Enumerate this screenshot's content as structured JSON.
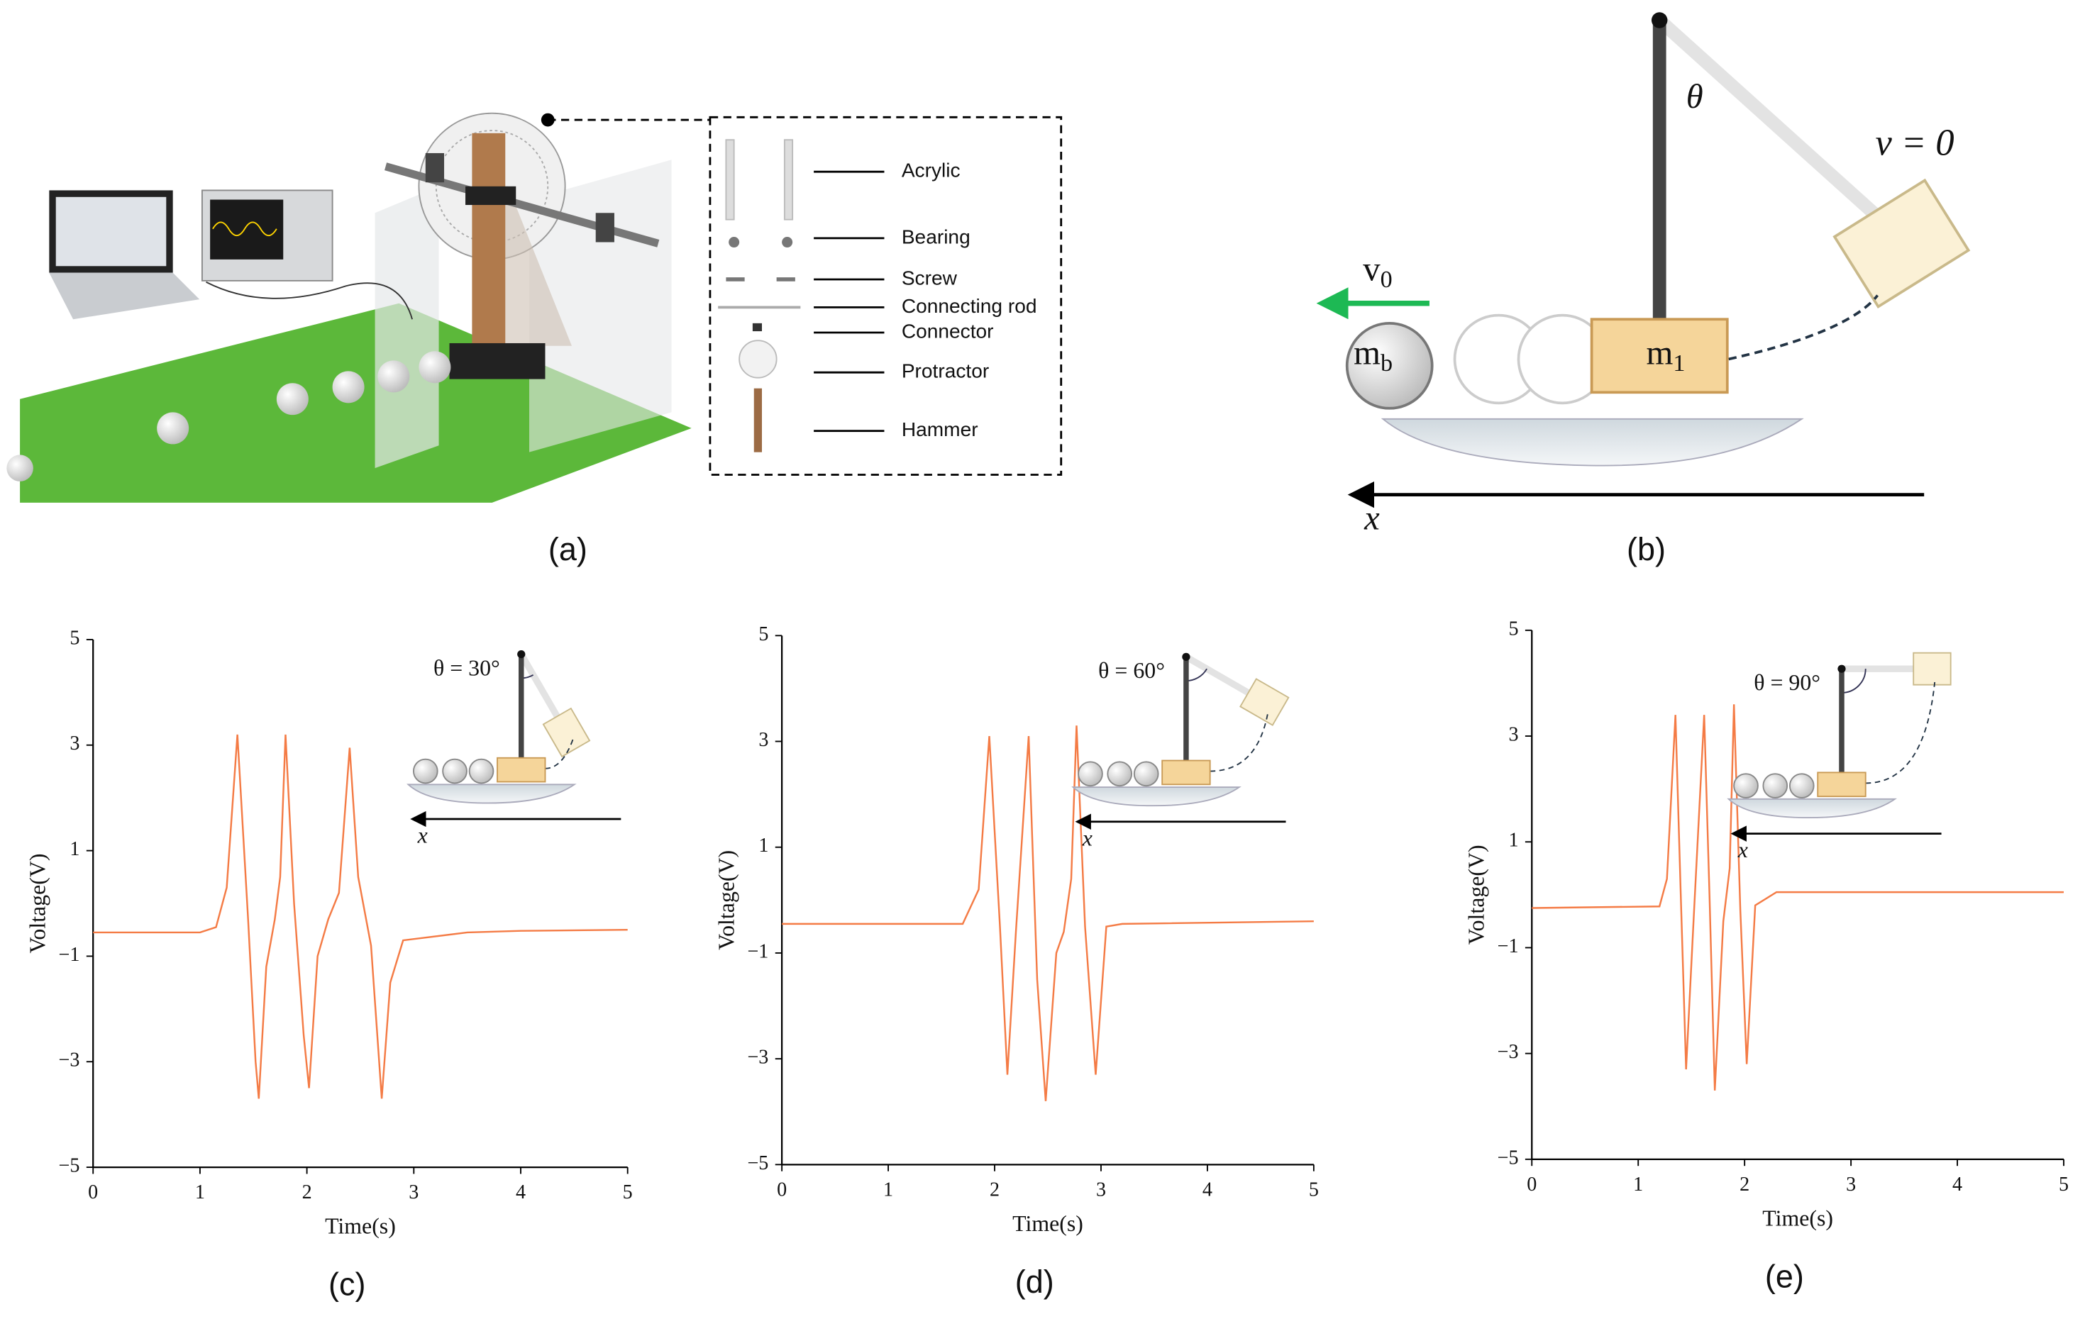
{
  "panel_a": {
    "caption": "(a)",
    "parts": [
      "Acrylic",
      "Bearing",
      "Screw",
      "Connecting rod",
      "Connector",
      "Protractor",
      "Hammer"
    ]
  },
  "panel_b": {
    "caption": "(b)",
    "theta": "θ",
    "release": "v = 0",
    "velocity": {
      "main": "v",
      "sub": "0"
    },
    "ball_mass": {
      "main": "m",
      "sub": "b"
    },
    "hammer_mass": {
      "main": "m",
      "sub": "1"
    },
    "axis": "x"
  },
  "chart_data": [
    {
      "type": "line",
      "caption": "(c)",
      "annotation": "θ = 30°",
      "axis_label": "x",
      "xlabel": "Time(s)",
      "ylabel": "Voltage(V)",
      "x": [
        0,
        1,
        1.15,
        1.25,
        1.35,
        1.45,
        1.52,
        1.55,
        1.62,
        1.7,
        1.75,
        1.8,
        1.88,
        1.97,
        2.02,
        2.1,
        2.2,
        2.3,
        2.4,
        2.48,
        2.6,
        2.7,
        2.78,
        2.9,
        3.5,
        4,
        5
      ],
      "series": [
        {
          "color": "#f47b45",
          "values": [
            -0.55,
            -0.55,
            -0.45,
            0.3,
            3.2,
            -0.3,
            -3.0,
            -3.7,
            -1.2,
            -0.3,
            0.5,
            3.2,
            0.0,
            -2.5,
            -3.5,
            -1.0,
            -0.3,
            0.2,
            2.95,
            0.5,
            -0.8,
            -3.7,
            -1.5,
            -0.7,
            -0.55,
            -0.52,
            -0.5
          ]
        }
      ],
      "xlim": [
        0,
        5
      ],
      "ylim": [
        -5,
        5
      ],
      "xticks": [
        0,
        1,
        2,
        3,
        4,
        5
      ],
      "yticks": [
        {
          "value": -5,
          "label": "−5"
        },
        {
          "value": -3,
          "label": "−3"
        },
        {
          "value": -1,
          "label": "−1"
        },
        1,
        3,
        5
      ]
    },
    {
      "type": "line",
      "caption": "(d)",
      "annotation": "θ = 60°",
      "axis_label": "x",
      "xlabel": "Time(s)",
      "ylabel": "Voltage(V)",
      "x": [
        0,
        1.7,
        1.85,
        1.95,
        2.05,
        2.12,
        2.2,
        2.32,
        2.4,
        2.48,
        2.58,
        2.65,
        2.72,
        2.77,
        2.85,
        2.95,
        3.05,
        3.2,
        5
      ],
      "series": [
        {
          "color": "#f47b45",
          "values": [
            -0.45,
            -0.45,
            0.2,
            3.1,
            -0.5,
            -3.3,
            -0.6,
            3.1,
            -1.5,
            -3.8,
            -1.0,
            -0.6,
            0.4,
            3.3,
            -0.5,
            -3.3,
            -0.5,
            -0.45,
            -0.4
          ]
        }
      ],
      "xlim": [
        0,
        5
      ],
      "ylim": [
        -5,
        5
      ],
      "xticks": [
        0,
        1,
        2,
        3,
        4,
        5
      ],
      "yticks": [
        {
          "value": -5,
          "label": "−5"
        },
        {
          "value": -3,
          "label": "−3"
        },
        {
          "value": -1,
          "label": "−1"
        },
        1,
        3,
        5
      ]
    },
    {
      "type": "line",
      "caption": "(e)",
      "annotation": "θ = 90°",
      "axis_label": "x",
      "xlabel": "Time(s)",
      "ylabel": "Voltage(V)",
      "x": [
        0,
        1.2,
        1.27,
        1.35,
        1.4,
        1.45,
        1.52,
        1.62,
        1.67,
        1.72,
        1.8,
        1.86,
        1.9,
        1.96,
        2.02,
        2.1,
        2.3,
        5
      ],
      "series": [
        {
          "color": "#f47b45",
          "values": [
            -0.25,
            -0.22,
            0.3,
            3.4,
            0.0,
            -3.3,
            -0.5,
            3.4,
            0.0,
            -3.7,
            -0.5,
            0.5,
            3.6,
            -0.3,
            -3.2,
            -0.2,
            0.05,
            0.05
          ]
        }
      ],
      "xlim": [
        0,
        5
      ],
      "ylim": [
        -5,
        5
      ],
      "xticks": [
        0,
        1,
        2,
        3,
        4,
        5
      ],
      "yticks": [
        {
          "value": -5,
          "label": "−5"
        },
        {
          "value": -3,
          "label": "−3"
        },
        {
          "value": -1,
          "label": "−1"
        },
        1,
        3,
        5
      ]
    }
  ]
}
